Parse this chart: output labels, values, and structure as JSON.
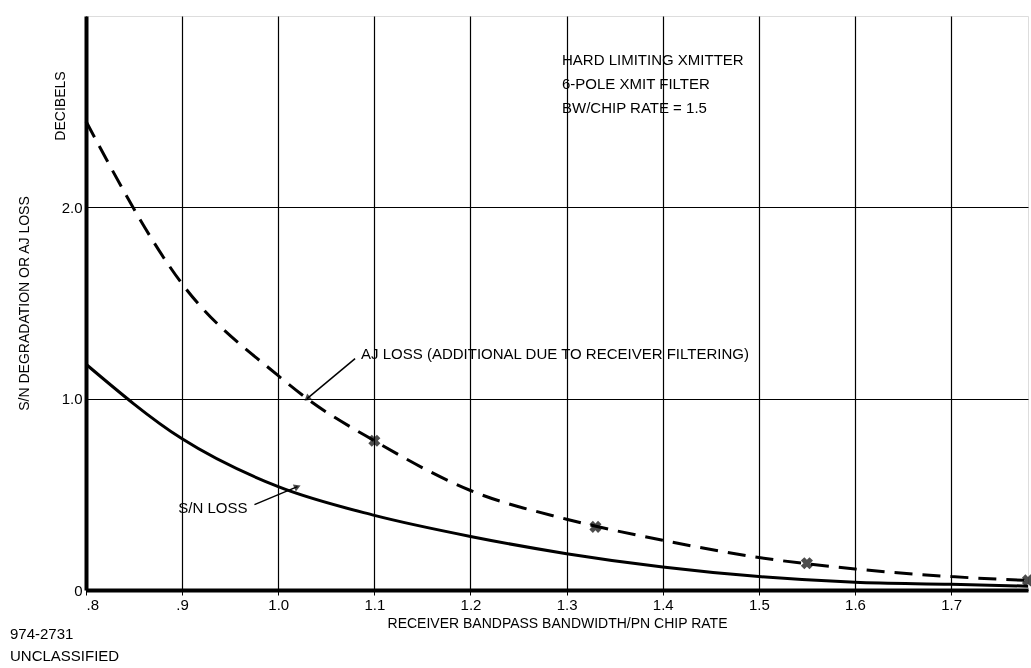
{
  "chart_data": {
    "type": "line",
    "xlabel": "RECEIVER BANDPASS BANDWIDTH/PN CHIP RATE",
    "ylabel": "S/N DEGRADATION OR AJ LOSS",
    "xlim": [
      0.8,
      1.78
    ],
    "ylim": [
      0,
      3.0
    ],
    "xticks": [
      {
        "value": 0.8,
        "label": ".8"
      },
      {
        "value": 0.9,
        "label": ".9"
      },
      {
        "value": 1.0,
        "label": "1.0"
      },
      {
        "value": 1.1,
        "label": "1.1"
      },
      {
        "value": 1.2,
        "label": "1.2"
      },
      {
        "value": 1.3,
        "label": "1.3"
      },
      {
        "value": 1.4,
        "label": "1.4"
      },
      {
        "value": 1.5,
        "label": "1.5"
      },
      {
        "value": 1.6,
        "label": "1.6"
      },
      {
        "value": 1.7,
        "label": "1.7"
      }
    ],
    "yticks": [
      0,
      {
        "value": 1.0,
        "label": "1.0"
      },
      {
        "value": 2.0,
        "label": "2.0"
      }
    ],
    "grid": true,
    "series": [
      {
        "type": "line",
        "line_style": "dashed",
        "color": "#000000",
        "x": [
          0.8,
          0.9,
          1.0,
          1.03,
          1.1,
          1.2,
          1.3,
          1.4,
          1.5,
          1.6,
          1.7,
          1.78
        ],
        "values": [
          2.45,
          1.6,
          1.12,
          1.0,
          0.78,
          0.52,
          0.37,
          0.26,
          0.17,
          0.11,
          0.07,
          0.05
        ]
      },
      {
        "type": "scatter",
        "marker": "cross",
        "color": "#000000",
        "x": [
          1.1,
          1.33,
          1.55,
          1.78
        ],
        "values": [
          0.78,
          0.33,
          0.14,
          0.05
        ]
      },
      {
        "type": "line",
        "line_style": "solid",
        "color": "#000000",
        "x": [
          0.8,
          0.9,
          1.0,
          1.1,
          1.2,
          1.3,
          1.4,
          1.5,
          1.6,
          1.7,
          1.78
        ],
        "values": [
          1.18,
          0.79,
          0.54,
          0.39,
          0.28,
          0.19,
          0.12,
          0.07,
          0.04,
          0.03,
          0.02
        ]
      }
    ],
    "annotations": [
      "HARD LIMITING XMITTER",
      "6-POLE XMIT FILTER",
      "BW/CHIP RATE = 1.5",
      "DECIBELS",
      "974-2731",
      "UNCLASSIFIED",
      {
        "text": "AJ LOSS (ADDITIONAL DUE TO RECEIVER FILTERING)",
        "x": 1.03,
        "y": 1.0
      },
      {
        "text": "S/N LOSS",
        "x": 1.02,
        "y": 0.54
      }
    ]
  }
}
